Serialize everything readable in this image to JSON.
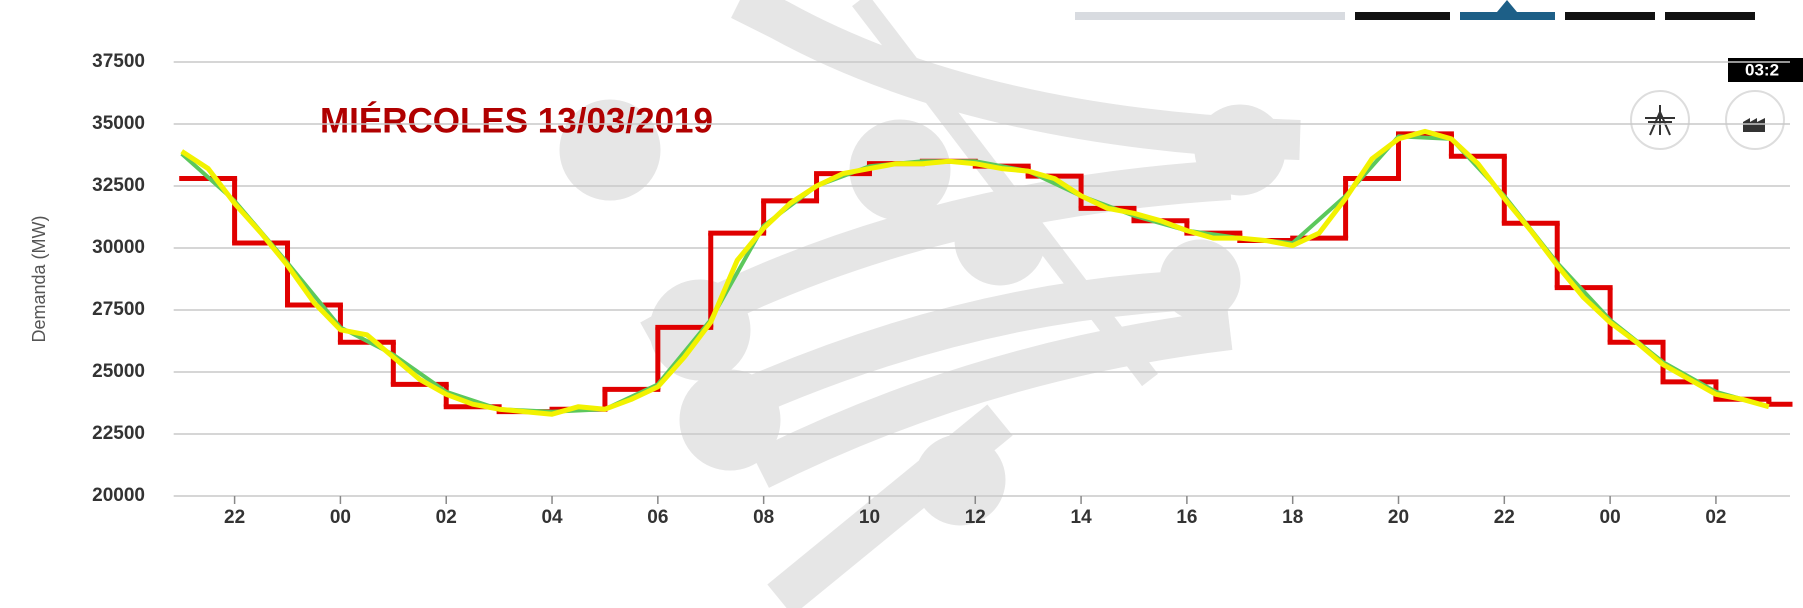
{
  "chart_data": {
    "type": "line",
    "title": "MIÉRCOLES 13/03/2019",
    "y_label": "Demanda (MW)",
    "tooltip": "03:2",
    "ylim": [
      20000,
      37500
    ],
    "yticks": [
      20000,
      22500,
      25000,
      27500,
      30000,
      32500,
      35000,
      37500
    ],
    "xlim": [
      21,
      51.4
    ],
    "xticks": [
      {
        "value": 22,
        "label": "22"
      },
      {
        "value": 24,
        "label": "00"
      },
      {
        "value": 26,
        "label": "02"
      },
      {
        "value": 28,
        "label": "04"
      },
      {
        "value": 30,
        "label": "06"
      },
      {
        "value": 32,
        "label": "08"
      },
      {
        "value": 34,
        "label": "10"
      },
      {
        "value": 36,
        "label": "12"
      },
      {
        "value": 38,
        "label": "14"
      },
      {
        "value": 40,
        "label": "16"
      },
      {
        "value": 42,
        "label": "18"
      },
      {
        "value": 44,
        "label": "20"
      },
      {
        "value": 46,
        "label": "22"
      },
      {
        "value": 48,
        "label": "00"
      },
      {
        "value": 50,
        "label": "02"
      }
    ],
    "grid": true,
    "series": [
      {
        "color": "#e00000",
        "step": true,
        "x": [
          21,
          22,
          23,
          24,
          25,
          26,
          27,
          28,
          29,
          30,
          31,
          32,
          33,
          34,
          35,
          36,
          37,
          38,
          39,
          40,
          41,
          42,
          43,
          44,
          45,
          46,
          47,
          48,
          49,
          50,
          51
        ],
        "values": [
          32800,
          30200,
          27700,
          26200,
          24500,
          23600,
          23400,
          23500,
          24300,
          26800,
          30600,
          31900,
          33000,
          33400,
          33500,
          33300,
          32900,
          31600,
          31100,
          30600,
          30300,
          30400,
          32800,
          34600,
          33700,
          31000,
          28400,
          26200,
          24600,
          23900,
          23700
        ]
      },
      {
        "color": "#5cc85c",
        "x": [
          21,
          22,
          23,
          24,
          25,
          26,
          27,
          28,
          29,
          30,
          31,
          32,
          33,
          34,
          35,
          36,
          37,
          38,
          39,
          40,
          41,
          42,
          43,
          44,
          45,
          46,
          47,
          48,
          49,
          50,
          51
        ],
        "values": [
          33800,
          31900,
          29400,
          26800,
          25700,
          24200,
          23500,
          23400,
          23500,
          24500,
          27100,
          30900,
          32500,
          33300,
          33500,
          33500,
          33100,
          32100,
          31300,
          30700,
          30400,
          30200,
          32100,
          34500,
          34400,
          32100,
          29400,
          27100,
          25400,
          24200,
          23600
        ]
      },
      {
        "color": "#f2f200",
        "x": [
          21,
          21.5,
          22,
          22.5,
          23,
          23.5,
          24,
          24.5,
          25,
          25.5,
          26,
          26.5,
          27,
          27.5,
          28,
          28.5,
          29,
          29.5,
          30,
          30.5,
          31,
          31.5,
          32,
          32.5,
          33,
          33.5,
          34,
          34.5,
          35,
          35.5,
          36,
          36.5,
          37,
          37.5,
          38,
          38.5,
          39,
          39.5,
          40,
          40.5,
          41,
          41.5,
          42,
          42.5,
          43,
          43.5,
          44,
          44.5,
          45,
          45.5,
          46,
          46.5,
          47,
          47.5,
          48,
          48.5,
          49,
          49.5,
          50,
          50.5,
          51
        ],
        "values": [
          33900,
          33200,
          31800,
          30600,
          29300,
          27800,
          26700,
          26500,
          25600,
          24700,
          24100,
          23700,
          23500,
          23400,
          23300,
          23600,
          23500,
          23900,
          24400,
          25600,
          27000,
          29500,
          30800,
          31800,
          32500,
          33000,
          33200,
          33400,
          33400,
          33500,
          33400,
          33200,
          33100,
          32800,
          32100,
          31600,
          31400,
          31100,
          30700,
          30400,
          30400,
          30300,
          30100,
          30600,
          32000,
          33600,
          34400,
          34700,
          34400,
          33400,
          32000,
          30700,
          29300,
          28000,
          27000,
          26200,
          25300,
          24700,
          24100,
          23900,
          23600
        ]
      }
    ]
  }
}
